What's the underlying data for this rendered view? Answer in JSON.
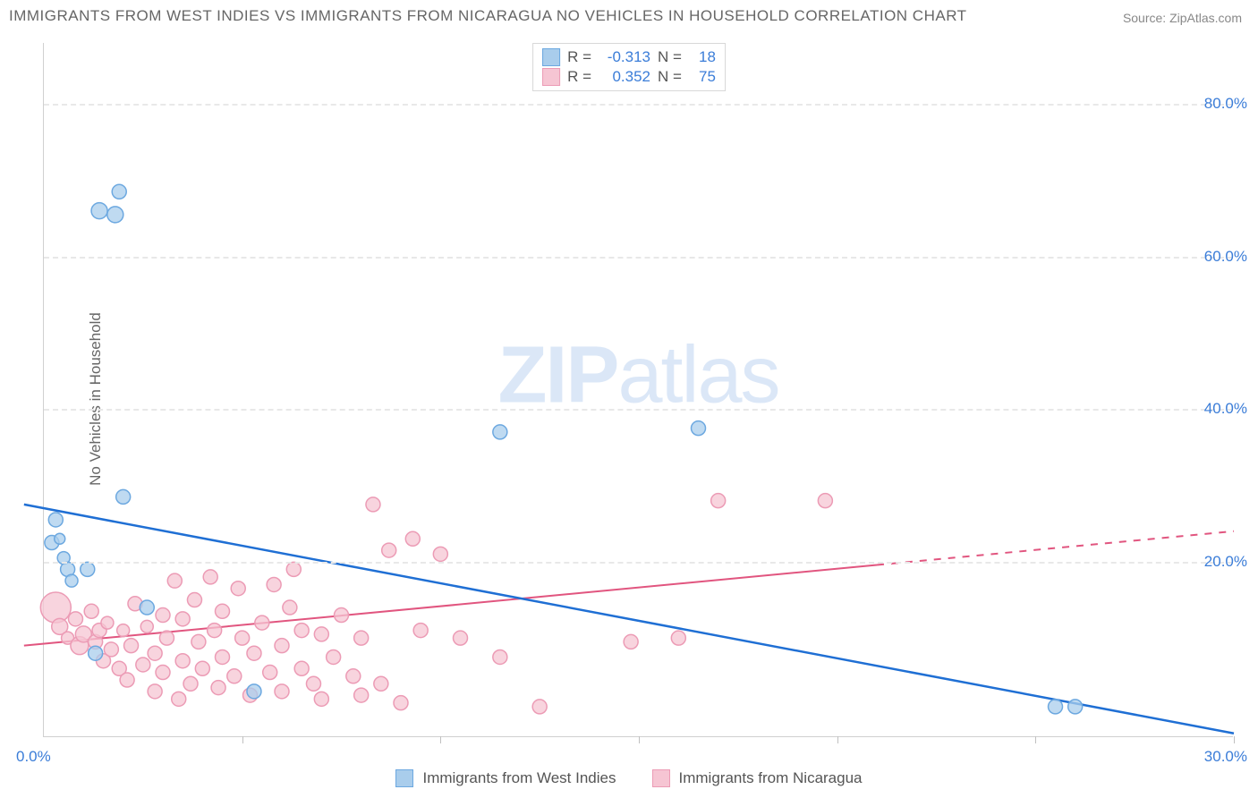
{
  "title": "IMMIGRANTS FROM WEST INDIES VS IMMIGRANTS FROM NICARAGUA NO VEHICLES IN HOUSEHOLD CORRELATION CHART",
  "source_label": "Source: ZipAtlas.com",
  "ylabel": "No Vehicles in Household",
  "watermark_a": "ZIP",
  "watermark_b": "atlas",
  "chart": {
    "type": "scatter",
    "background_color": "#ffffff",
    "grid_color": "#e8e8e8",
    "axis_color": "#d0d0d0",
    "tick_label_color": "#3b7dd8",
    "xlim": [
      0,
      30
    ],
    "ylim": [
      -3,
      88
    ],
    "ytick_values": [
      20,
      40,
      60,
      80
    ],
    "ytick_labels": [
      "20.0%",
      "40.0%",
      "60.0%",
      "80.0%"
    ],
    "xtick_values": [
      0,
      5,
      10,
      15,
      20,
      25,
      30
    ],
    "x_start_label": "0.0%",
    "x_end_label": "30.0%",
    "title_fontsize": 17,
    "label_fontsize": 17,
    "tick_fontsize": 17
  },
  "series": [
    {
      "key": "west_indies",
      "legend_label": "Immigrants from West Indies",
      "color_fill": "#a9cdec",
      "color_stroke": "#6ca8e0",
      "marker_radius": 8,
      "r_value": "-0.313",
      "n_value": "18",
      "trend": {
        "x1": -0.5,
        "y1": 27.5,
        "x2": 30,
        "y2": -2.5,
        "color": "#1f6fd4",
        "width": 2.5,
        "dash_after_x": 999
      },
      "points": [
        {
          "x": 0.2,
          "y": 22.5,
          "r": 8
        },
        {
          "x": 0.3,
          "y": 25.5,
          "r": 8
        },
        {
          "x": 0.5,
          "y": 20.5,
          "r": 7
        },
        {
          "x": 0.6,
          "y": 19.0,
          "r": 8
        },
        {
          "x": 0.7,
          "y": 17.5,
          "r": 7
        },
        {
          "x": 1.1,
          "y": 19.0,
          "r": 8
        },
        {
          "x": 1.4,
          "y": 66.0,
          "r": 9
        },
        {
          "x": 1.8,
          "y": 65.5,
          "r": 9
        },
        {
          "x": 1.9,
          "y": 68.5,
          "r": 8
        },
        {
          "x": 2.0,
          "y": 28.5,
          "r": 8
        },
        {
          "x": 1.3,
          "y": 8.0,
          "r": 8
        },
        {
          "x": 2.6,
          "y": 14.0,
          "r": 8
        },
        {
          "x": 5.3,
          "y": 3.0,
          "r": 8
        },
        {
          "x": 11.5,
          "y": 37.0,
          "r": 8
        },
        {
          "x": 16.5,
          "y": 37.5,
          "r": 8
        },
        {
          "x": 25.5,
          "y": 1.0,
          "r": 8
        },
        {
          "x": 26.0,
          "y": 1.0,
          "r": 8
        },
        {
          "x": 0.4,
          "y": 23.0,
          "r": 6
        }
      ]
    },
    {
      "key": "nicaragua",
      "legend_label": "Immigrants from Nicaragua",
      "color_fill": "#f6c5d3",
      "color_stroke": "#ec9bb5",
      "marker_radius": 8,
      "r_value": "0.352",
      "n_value": "75",
      "trend": {
        "x1": -0.5,
        "y1": 9.0,
        "x2": 30,
        "y2": 24.0,
        "color": "#e1557f",
        "width": 2,
        "dash_after_x": 21
      },
      "points": [
        {
          "x": 0.3,
          "y": 14.0,
          "r": 17
        },
        {
          "x": 0.4,
          "y": 11.5,
          "r": 9
        },
        {
          "x": 0.6,
          "y": 10.0,
          "r": 7
        },
        {
          "x": 0.8,
          "y": 12.5,
          "r": 8
        },
        {
          "x": 0.9,
          "y": 9.0,
          "r": 10
        },
        {
          "x": 1.0,
          "y": 10.5,
          "r": 9
        },
        {
          "x": 1.2,
          "y": 13.5,
          "r": 8
        },
        {
          "x": 1.3,
          "y": 9.5,
          "r": 8
        },
        {
          "x": 1.4,
          "y": 11.0,
          "r": 8
        },
        {
          "x": 1.5,
          "y": 7.0,
          "r": 8
        },
        {
          "x": 1.6,
          "y": 12.0,
          "r": 7
        },
        {
          "x": 1.7,
          "y": 8.5,
          "r": 8
        },
        {
          "x": 1.9,
          "y": 6.0,
          "r": 8
        },
        {
          "x": 2.0,
          "y": 11.0,
          "r": 7
        },
        {
          "x": 2.1,
          "y": 4.5,
          "r": 8
        },
        {
          "x": 2.2,
          "y": 9.0,
          "r": 8
        },
        {
          "x": 2.3,
          "y": 14.5,
          "r": 8
        },
        {
          "x": 2.5,
          "y": 6.5,
          "r": 8
        },
        {
          "x": 2.6,
          "y": 11.5,
          "r": 7
        },
        {
          "x": 2.8,
          "y": 3.0,
          "r": 8
        },
        {
          "x": 2.8,
          "y": 8.0,
          "r": 8
        },
        {
          "x": 3.0,
          "y": 13.0,
          "r": 8
        },
        {
          "x": 3.0,
          "y": 5.5,
          "r": 8
        },
        {
          "x": 3.1,
          "y": 10.0,
          "r": 8
        },
        {
          "x": 3.3,
          "y": 17.5,
          "r": 8
        },
        {
          "x": 3.4,
          "y": 2.0,
          "r": 8
        },
        {
          "x": 3.5,
          "y": 7.0,
          "r": 8
        },
        {
          "x": 3.5,
          "y": 12.5,
          "r": 8
        },
        {
          "x": 3.7,
          "y": 4.0,
          "r": 8
        },
        {
          "x": 3.8,
          "y": 15.0,
          "r": 8
        },
        {
          "x": 3.9,
          "y": 9.5,
          "r": 8
        },
        {
          "x": 4.0,
          "y": 6.0,
          "r": 8
        },
        {
          "x": 4.2,
          "y": 18.0,
          "r": 8
        },
        {
          "x": 4.3,
          "y": 11.0,
          "r": 8
        },
        {
          "x": 4.4,
          "y": 3.5,
          "r": 8
        },
        {
          "x": 4.5,
          "y": 13.5,
          "r": 8
        },
        {
          "x": 4.5,
          "y": 7.5,
          "r": 8
        },
        {
          "x": 4.8,
          "y": 5.0,
          "r": 8
        },
        {
          "x": 4.9,
          "y": 16.5,
          "r": 8
        },
        {
          "x": 5.0,
          "y": 10.0,
          "r": 8
        },
        {
          "x": 5.2,
          "y": 2.5,
          "r": 8
        },
        {
          "x": 5.3,
          "y": 8.0,
          "r": 8
        },
        {
          "x": 5.5,
          "y": 12.0,
          "r": 8
        },
        {
          "x": 5.7,
          "y": 5.5,
          "r": 8
        },
        {
          "x": 5.8,
          "y": 17.0,
          "r": 8
        },
        {
          "x": 6.0,
          "y": 9.0,
          "r": 8
        },
        {
          "x": 6.0,
          "y": 3.0,
          "r": 8
        },
        {
          "x": 6.2,
          "y": 14.0,
          "r": 8
        },
        {
          "x": 6.3,
          "y": 19.0,
          "r": 8
        },
        {
          "x": 6.5,
          "y": 6.0,
          "r": 8
        },
        {
          "x": 6.5,
          "y": 11.0,
          "r": 8
        },
        {
          "x": 6.8,
          "y": 4.0,
          "r": 8
        },
        {
          "x": 7.0,
          "y": 10.5,
          "r": 8
        },
        {
          "x": 7.0,
          "y": 2.0,
          "r": 8
        },
        {
          "x": 7.3,
          "y": 7.5,
          "r": 8
        },
        {
          "x": 7.5,
          "y": 13.0,
          "r": 8
        },
        {
          "x": 7.8,
          "y": 5.0,
          "r": 8
        },
        {
          "x": 8.0,
          "y": 10.0,
          "r": 8
        },
        {
          "x": 8.0,
          "y": 2.5,
          "r": 8
        },
        {
          "x": 8.3,
          "y": 27.5,
          "r": 8
        },
        {
          "x": 8.5,
          "y": 4.0,
          "r": 8
        },
        {
          "x": 8.7,
          "y": 21.5,
          "r": 8
        },
        {
          "x": 9.0,
          "y": 1.5,
          "r": 8
        },
        {
          "x": 9.3,
          "y": 23.0,
          "r": 8
        },
        {
          "x": 9.5,
          "y": 11.0,
          "r": 8
        },
        {
          "x": 10.0,
          "y": 21.0,
          "r": 8
        },
        {
          "x": 10.5,
          "y": 10.0,
          "r": 8
        },
        {
          "x": 11.5,
          "y": 7.5,
          "r": 8
        },
        {
          "x": 12.5,
          "y": 1.0,
          "r": 8
        },
        {
          "x": 14.8,
          "y": 9.5,
          "r": 8
        },
        {
          "x": 16.0,
          "y": 10.0,
          "r": 8
        },
        {
          "x": 17.0,
          "y": 28.0,
          "r": 8
        },
        {
          "x": 19.7,
          "y": 28.0,
          "r": 8
        }
      ]
    }
  ],
  "legend_top": {
    "r_prefix": "R  =",
    "n_prefix": "N  ="
  }
}
